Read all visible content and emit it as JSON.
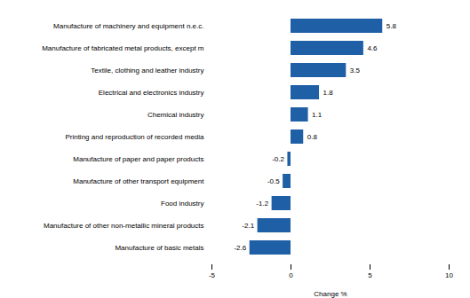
{
  "chart_data": {
    "type": "bar",
    "orientation": "horizontal",
    "categories": [
      "Manufacture of basic metals",
      "Manufacture of other non-metallic mineral products",
      "Food industry",
      "Manufacture of other transport equipment",
      "Manufacture of paper and paper products",
      "Printing and reproduction of recorded media",
      "Chemical industry",
      "Electrical and electronics industry",
      "Textile, clothing and leather industry",
      "Manufacture of fabricated metal products, except m",
      "Manufacture of machinery and equipment n.e.c."
    ],
    "values": [
      -2.6,
      -2.1,
      -1.2,
      -0.5,
      -0.2,
      0.8,
      1.1,
      1.8,
      3.5,
      4.6,
      5.8
    ],
    "color": "#1F5FA6",
    "xlabel": "Change %",
    "xlim": [
      -5,
      10
    ],
    "xticks": [
      -5,
      0,
      5,
      10
    ],
    "grid": false,
    "data_labels": true
  }
}
